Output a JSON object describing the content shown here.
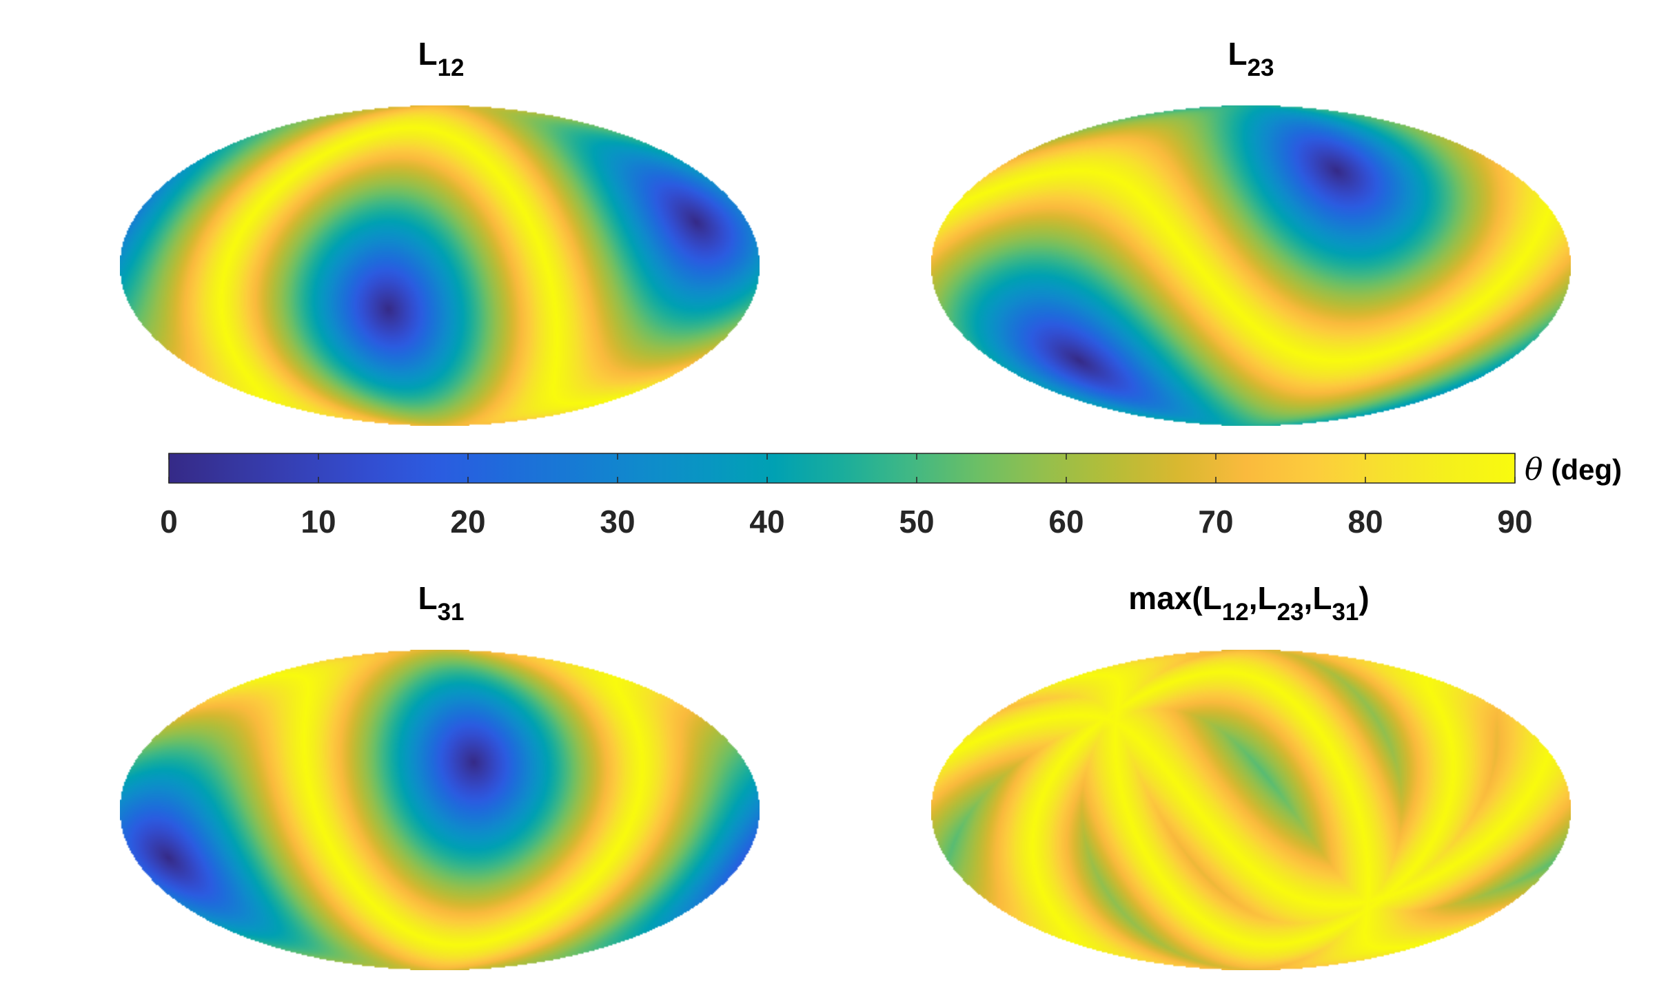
{
  "chart_data": {
    "type": "heatmap",
    "projection": "mollweide",
    "colormap": "parula",
    "panels": [
      {
        "title": {
          "base": "L",
          "sub": "12"
        },
        "minima": [
          {
            "lon": -30,
            "lat": -20
          },
          {
            "lon": 165,
            "lat": 20
          }
        ]
      },
      {
        "title": {
          "base": "L",
          "sub": "23"
        },
        "minima": [
          {
            "lon": 60,
            "lat": 45
          },
          {
            "lon": -120,
            "lat": -45
          }
        ]
      },
      {
        "title": {
          "base": "L",
          "sub": "31"
        },
        "minima": [
          {
            "lon": 20,
            "lat": 22
          },
          {
            "lon": -160,
            "lat": -22
          }
        ]
      },
      {
        "title": {
          "parts": [
            {
              "t": "max(L",
              "sub": false
            },
            {
              "t": "12",
              "sub": true
            },
            {
              "t": ",L",
              "sub": false
            },
            {
              "t": "23",
              "sub": true
            },
            {
              "t": ",L",
              "sub": false
            },
            {
              "t": "31",
              "sub": true
            },
            {
              "t": ")",
              "sub": false
            }
          ]
        }
      }
    ],
    "colorbar": {
      "label_symbol": "θ",
      "label_unit": "(deg)",
      "range": [
        0,
        90
      ],
      "ticks": [
        "0",
        "10",
        "20",
        "30",
        "40",
        "50",
        "60",
        "70",
        "80",
        "90"
      ]
    }
  }
}
